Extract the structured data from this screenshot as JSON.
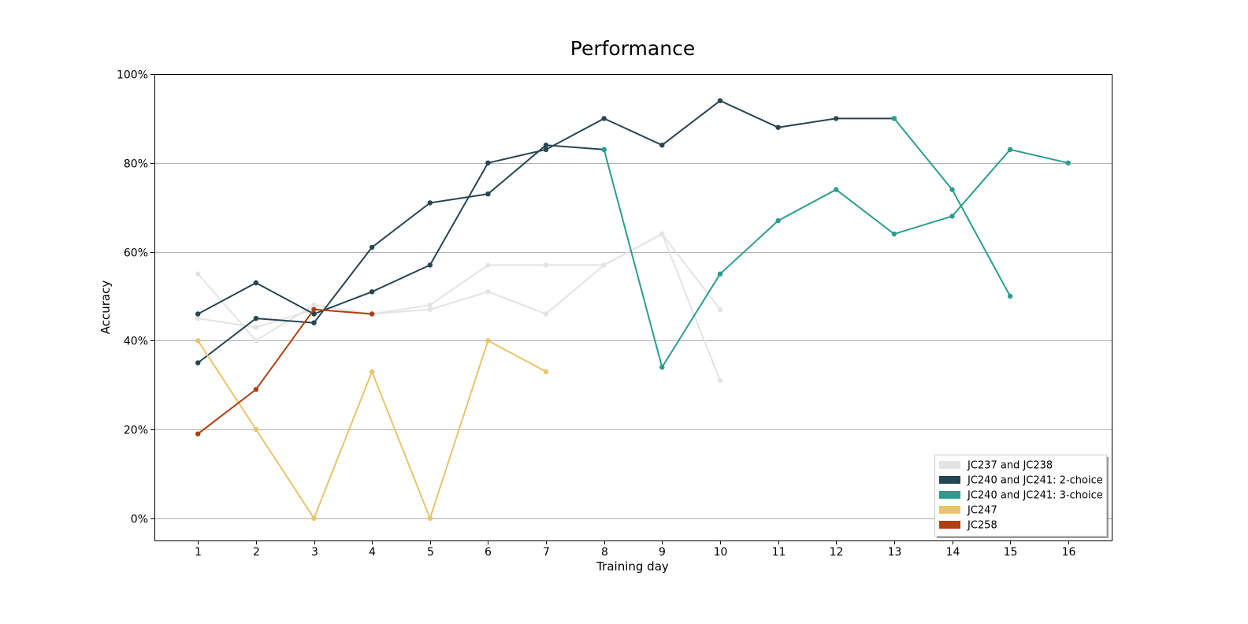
{
  "chart_data": {
    "type": "line",
    "title": "Performance",
    "xlabel": "Training day",
    "ylabel": "Accuracy",
    "xlim": [
      0.25,
      16.75
    ],
    "ylim": [
      -5,
      100
    ],
    "x_ticks": [
      1,
      2,
      3,
      4,
      5,
      6,
      7,
      8,
      9,
      10,
      11,
      12,
      13,
      14,
      15,
      16
    ],
    "y_ticks": [
      0,
      20,
      40,
      60,
      80,
      100
    ],
    "y_tick_labels": [
      "0%",
      "20%",
      "40%",
      "60%",
      "80%",
      "100%"
    ],
    "grid": "horizontal",
    "legend_position": "bottom-right",
    "legend": [
      {
        "label": "JC237 and JC238",
        "color": "#e3e3e3"
      },
      {
        "label": "JC240 and JC241: 2-choice",
        "color": "#264653"
      },
      {
        "label": "JC240 and JC241: 3-choice",
        "color": "#2a9d8f"
      },
      {
        "label": "JC247",
        "color": "#e9c46a"
      },
      {
        "label": "JC258",
        "color": "#b04012"
      }
    ],
    "series": [
      {
        "color": "#e3e3e3",
        "points": [
          [
            1,
            55
          ],
          [
            2,
            40
          ],
          [
            3,
            48
          ],
          [
            4,
            46
          ],
          [
            5,
            47
          ],
          [
            6,
            51
          ],
          [
            7,
            46
          ],
          [
            8,
            57
          ],
          [
            9,
            64
          ],
          [
            10,
            31
          ]
        ]
      },
      {
        "color": "#e3e3e3",
        "points": [
          [
            1,
            45
          ],
          [
            2,
            43
          ],
          [
            3,
            47
          ],
          [
            4,
            46
          ],
          [
            5,
            48
          ],
          [
            6,
            57
          ],
          [
            7,
            57
          ],
          [
            8,
            57
          ],
          [
            9,
            64
          ],
          [
            10,
            47
          ]
        ]
      },
      {
        "color": "#264653",
        "points": [
          [
            1,
            46
          ],
          [
            2,
            53
          ],
          [
            3,
            46
          ],
          [
            4,
            51
          ],
          [
            5,
            57
          ],
          [
            6,
            80
          ],
          [
            7,
            83
          ],
          [
            8,
            90
          ],
          [
            9,
            84
          ],
          [
            10,
            94
          ],
          [
            11,
            88
          ],
          [
            12,
            90
          ],
          [
            13,
            90
          ]
        ]
      },
      {
        "color": "#264653",
        "points": [
          [
            1,
            35
          ],
          [
            2,
            45
          ],
          [
            3,
            44
          ],
          [
            4,
            61
          ],
          [
            5,
            71
          ],
          [
            6,
            73
          ],
          [
            7,
            84
          ],
          [
            8,
            83
          ]
        ]
      },
      {
        "color": "#2a9d8f",
        "points": [
          [
            8,
            83
          ],
          [
            9,
            34
          ],
          [
            10,
            55
          ],
          [
            11,
            67
          ],
          [
            12,
            74
          ],
          [
            13,
            64
          ],
          [
            14,
            68
          ],
          [
            15,
            83
          ],
          [
            16,
            80
          ]
        ]
      },
      {
        "color": "#2a9d8f",
        "points": [
          [
            13,
            90
          ],
          [
            14,
            74
          ],
          [
            15,
            50
          ]
        ]
      },
      {
        "color": "#e9c46a",
        "points": [
          [
            1,
            40
          ],
          [
            2,
            20
          ],
          [
            3,
            0
          ],
          [
            4,
            33
          ],
          [
            5,
            0
          ],
          [
            6,
            40
          ],
          [
            7,
            33
          ]
        ]
      },
      {
        "color": "#b04012",
        "points": [
          [
            1,
            19
          ],
          [
            2,
            29
          ],
          [
            3,
            47
          ],
          [
            4,
            46
          ]
        ]
      }
    ]
  }
}
